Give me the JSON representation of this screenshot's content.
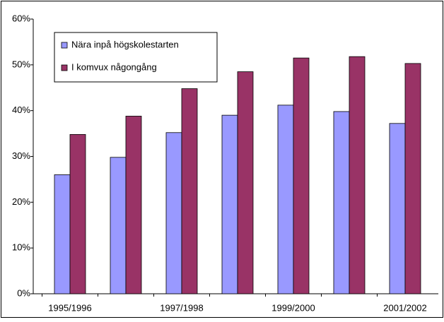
{
  "chart_data": {
    "type": "bar",
    "categories": [
      "1995/1996",
      null,
      "1997/1998",
      null,
      "1999/2000",
      null,
      "2001/2002"
    ],
    "series": [
      {
        "name": "Nära inpå högskolestarten",
        "color": "#9999ff",
        "values": [
          26,
          29.8,
          35.2,
          39,
          41.2,
          39.8,
          37.2
        ]
      },
      {
        "name": "I komvux någongång",
        "color": "#993366",
        "values": [
          34.8,
          38.8,
          44.8,
          48.5,
          51.5,
          51.8,
          50.3
        ]
      }
    ],
    "ylim": [
      0,
      60
    ],
    "yticks": [
      {
        "value": 0,
        "label": "0%"
      },
      {
        "value": 10,
        "label": "10%"
      },
      {
        "value": 20,
        "label": "20%"
      },
      {
        "value": 30,
        "label": "30%"
      },
      {
        "value": 40,
        "label": "40%"
      },
      {
        "value": 50,
        "label": "50%"
      },
      {
        "value": 60,
        "label": "60%"
      }
    ],
    "grid": false,
    "legend": "top-left"
  }
}
